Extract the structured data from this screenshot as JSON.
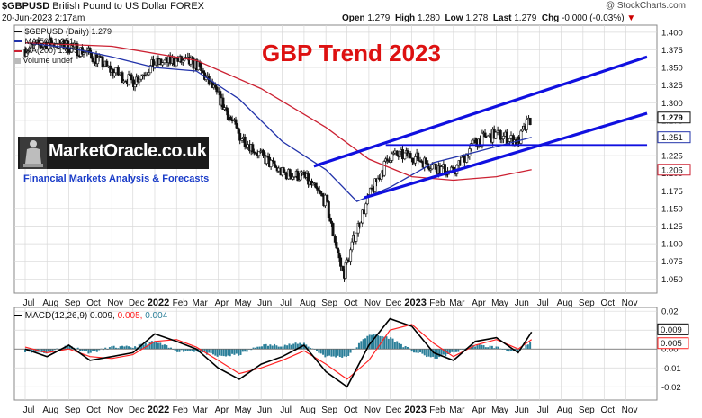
{
  "header": {
    "symbol": "$GBPUSD",
    "description": "British Pound to US Dollar",
    "exchange": "FOREX",
    "date": "20-Jun-2023 2:17am",
    "copyright": "@ StockCharts.com",
    "open_label": "Open",
    "open": "1.279",
    "high_label": "High",
    "high": "1.280",
    "low_label": "Low",
    "low": "1.278",
    "last_label": "Last",
    "last": "1.279",
    "chg_label": "Chg",
    "chg": "-0.000 (-0.03%)"
  },
  "branding": {
    "logo_text": "MarketOracle.co.uk",
    "tagline": "Financial Markets Analysis & Forecasts"
  },
  "colors": {
    "price": "#111111",
    "ma50": "#2233aa",
    "ma200": "#cc2233",
    "channel": "#1010e0",
    "title": "#dd1111",
    "macd_hist": "#2b7f99",
    "macd_line": "#000000",
    "signal_line": "#ff2222",
    "grid": "#d8d8d8"
  },
  "chart_data": [
    {
      "type": "line",
      "title": "GBP Trend 2023",
      "legend": [
        {
          "key": "price",
          "text": "$GBPUSD (Daily) 1.279"
        },
        {
          "key": "ma50",
          "text": "MA(50) 1.251"
        },
        {
          "key": "ma200",
          "text": "MA(200) 1.205"
        },
        {
          "key": "volume",
          "text": "Volume undef"
        }
      ],
      "legend_placement": "top-left",
      "ylim": [
        1.03,
        1.41
      ],
      "y_ticks": [
        "1.400",
        "1.375",
        "1.350",
        "1.325",
        "1.300",
        "1.275",
        "1.250",
        "1.225",
        "1.200",
        "1.175",
        "1.150",
        "1.125",
        "1.100",
        "1.075",
        "1.050"
      ],
      "x_labels": [
        "Jul",
        "Aug",
        "Sep",
        "Oct",
        "Nov",
        "Dec",
        "2022",
        "Feb",
        "Mar",
        "Apr",
        "May",
        "Jun",
        "Jul",
        "Aug",
        "Sep",
        "Oct",
        "Nov",
        "Dec",
        "2023",
        "Feb",
        "Mar",
        "Apr",
        "May",
        "Jun",
        "Jul",
        "Aug",
        "Sep",
        "Oct",
        "Nov"
      ],
      "grid": true,
      "series": [
        {
          "name": "$GBPUSD",
          "key": "price",
          "x": [
            "2021-07-01",
            "2021-08-01",
            "2021-09-01",
            "2021-10-01",
            "2021-11-01",
            "2021-12-01",
            "2022-01-01",
            "2022-02-01",
            "2022-03-01",
            "2022-04-01",
            "2022-05-01",
            "2022-06-01",
            "2022-07-01",
            "2022-08-01",
            "2022-09-01",
            "2022-09-26",
            "2022-10-15",
            "2022-11-01",
            "2022-12-01",
            "2023-01-01",
            "2023-02-01",
            "2023-03-01",
            "2023-04-01",
            "2023-05-01",
            "2023-06-01",
            "2023-06-20"
          ],
          "values": [
            1.375,
            1.385,
            1.38,
            1.37,
            1.345,
            1.33,
            1.355,
            1.36,
            1.355,
            1.31,
            1.255,
            1.225,
            1.2,
            1.195,
            1.16,
            1.055,
            1.12,
            1.165,
            1.225,
            1.225,
            1.21,
            1.2,
            1.245,
            1.255,
            1.245,
            1.279
          ]
        },
        {
          "name": "MA(50)",
          "key": "ma50",
          "x": [
            "2021-07-01",
            "2021-09-01",
            "2021-11-01",
            "2022-01-01",
            "2022-03-01",
            "2022-05-01",
            "2022-07-01",
            "2022-09-01",
            "2022-10-15",
            "2022-12-01",
            "2023-02-01",
            "2023-04-01",
            "2023-06-20"
          ],
          "values": [
            1.385,
            1.378,
            1.365,
            1.35,
            1.345,
            1.305,
            1.245,
            1.205,
            1.16,
            1.18,
            1.215,
            1.23,
            1.251
          ]
        },
        {
          "name": "MA(200)",
          "key": "ma200",
          "x": [
            "2021-07-01",
            "2021-11-01",
            "2022-03-01",
            "2022-06-01",
            "2022-09-01",
            "2022-11-01",
            "2023-01-01",
            "2023-03-01",
            "2023-05-01",
            "2023-06-20"
          ],
          "values": [
            1.385,
            1.38,
            1.36,
            1.32,
            1.265,
            1.22,
            1.195,
            1.19,
            1.195,
            1.205
          ]
        }
      ],
      "annotations": [
        {
          "kind": "trendline",
          "from": [
            "2022-08-15",
            1.21
          ],
          "to": [
            "2023-12-01",
            1.365
          ]
        },
        {
          "kind": "trendline",
          "from": [
            "2022-10-25",
            1.165
          ],
          "to": [
            "2023-12-01",
            1.285
          ]
        },
        {
          "kind": "horizontal",
          "from": [
            "2022-11-25",
            1.24
          ],
          "to": [
            "2023-12-01",
            1.24
          ]
        }
      ],
      "price_labels": [
        "1.279",
        "1.251",
        "1.205"
      ]
    },
    {
      "type": "line",
      "legend": [
        {
          "key": "macd",
          "text": "MACD(12,26,9) 0.009,"
        },
        {
          "key": "signal",
          "text": "0.005,"
        },
        {
          "key": "hist",
          "text": "0.004"
        }
      ],
      "ylim": [
        -0.027,
        0.022
      ],
      "y_ticks": [
        "0.02",
        "0.01",
        "0.00",
        "-0.01",
        "-0.02"
      ],
      "x_labels": [
        "Jul",
        "Aug",
        "Sep",
        "Oct",
        "Nov",
        "Dec",
        "2022",
        "Feb",
        "Mar",
        "Apr",
        "May",
        "Jun",
        "Jul",
        "Aug",
        "Sep",
        "Oct",
        "Nov",
        "Dec",
        "2023",
        "Feb",
        "Mar",
        "Apr",
        "May",
        "Jun",
        "Jul",
        "Aug",
        "Sep",
        "Oct",
        "Nov"
      ],
      "series": [
        {
          "name": "MACD",
          "key": "macd",
          "x": [
            "2021-07-01",
            "2021-08-01",
            "2021-09-01",
            "2021-10-01",
            "2021-11-01",
            "2021-12-01",
            "2022-01-01",
            "2022-02-01",
            "2022-03-01",
            "2022-04-01",
            "2022-05-01",
            "2022-06-01",
            "2022-07-01",
            "2022-08-01",
            "2022-09-01",
            "2022-10-01",
            "2022-11-01",
            "2022-12-01",
            "2023-01-01",
            "2023-02-01",
            "2023-03-01",
            "2023-04-01",
            "2023-05-01",
            "2023-06-01",
            "2023-06-20"
          ],
          "values": [
            0.0,
            -0.004,
            0.002,
            -0.006,
            -0.004,
            -0.002,
            0.008,
            0.004,
            0.0,
            -0.01,
            -0.016,
            -0.008,
            -0.004,
            0.002,
            -0.012,
            -0.02,
            0.002,
            0.016,
            0.012,
            -0.002,
            -0.006,
            0.004,
            0.006,
            -0.002,
            0.009
          ]
        },
        {
          "name": "Signal",
          "key": "signal",
          "x": [
            "2021-07-01",
            "2021-08-01",
            "2021-09-01",
            "2021-10-01",
            "2021-11-01",
            "2021-12-01",
            "2022-01-01",
            "2022-02-01",
            "2022-03-01",
            "2022-04-01",
            "2022-05-01",
            "2022-06-01",
            "2022-07-01",
            "2022-08-01",
            "2022-09-01",
            "2022-10-01",
            "2022-11-01",
            "2022-12-01",
            "2023-01-01",
            "2023-02-01",
            "2023-03-01",
            "2023-04-01",
            "2023-05-01",
            "2023-06-01",
            "2023-06-20"
          ],
          "values": [
            0.001,
            -0.002,
            0.0,
            -0.004,
            -0.005,
            -0.003,
            0.004,
            0.005,
            0.001,
            -0.006,
            -0.013,
            -0.01,
            -0.006,
            -0.001,
            -0.008,
            -0.016,
            -0.006,
            0.01,
            0.013,
            0.003,
            -0.004,
            0.002,
            0.005,
            0.0,
            0.005
          ]
        }
      ],
      "price_labels": [
        "0.009",
        "0.005"
      ]
    }
  ]
}
